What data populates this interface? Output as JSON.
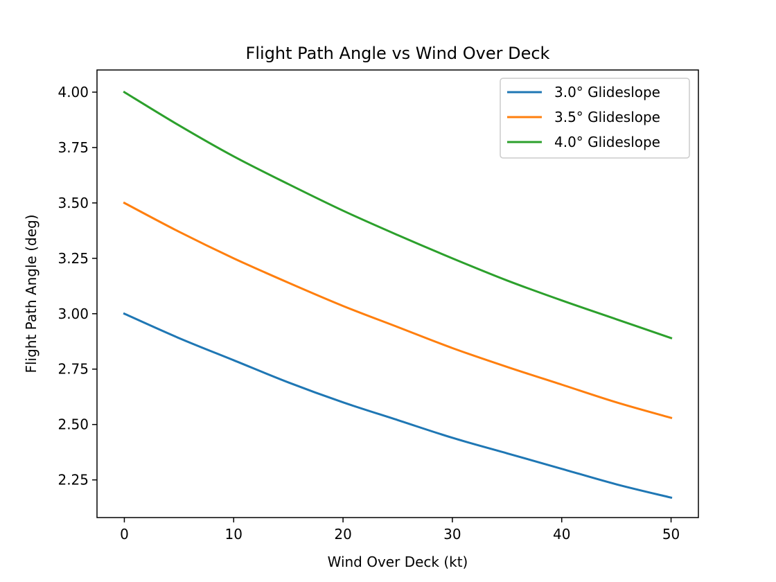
{
  "chart_data": {
    "type": "line",
    "title": "Flight Path Angle vs Wind Over Deck",
    "xlabel": "Wind Over Deck (kt)",
    "ylabel": "Flight Path Angle (deg)",
    "xlim": [
      -2.5,
      52.5
    ],
    "ylim": [
      2.08,
      4.1
    ],
    "xticks": [
      0,
      10,
      20,
      30,
      40,
      50
    ],
    "xtick_labels": [
      "0",
      "10",
      "20",
      "30",
      "40",
      "50"
    ],
    "yticks": [
      2.25,
      2.5,
      2.75,
      3.0,
      3.25,
      3.5,
      3.75,
      4.0
    ],
    "ytick_labels": [
      "2.25",
      "2.50",
      "2.75",
      "3.00",
      "3.25",
      "3.50",
      "3.75",
      "4.00"
    ],
    "grid": false,
    "legend_position": "top-right",
    "x": [
      0,
      5,
      10,
      15,
      20,
      25,
      30,
      35,
      40,
      45,
      50
    ],
    "series": [
      {
        "name": "3.0° Glideslope",
        "color": "#1f77b4",
        "values": [
          3.0,
          2.89,
          2.79,
          2.69,
          2.6,
          2.52,
          2.44,
          2.37,
          2.3,
          2.23,
          2.17
        ]
      },
      {
        "name": "3.5° Glideslope",
        "color": "#ff7f0e",
        "values": [
          3.5,
          3.37,
          3.25,
          3.14,
          3.035,
          2.94,
          2.845,
          2.76,
          2.68,
          2.6,
          2.53
        ]
      },
      {
        "name": "4.0° Glideslope",
        "color": "#2ca02c",
        "values": [
          4.0,
          3.85,
          3.71,
          3.585,
          3.465,
          3.355,
          3.25,
          3.15,
          3.06,
          2.975,
          2.89
        ]
      }
    ]
  }
}
